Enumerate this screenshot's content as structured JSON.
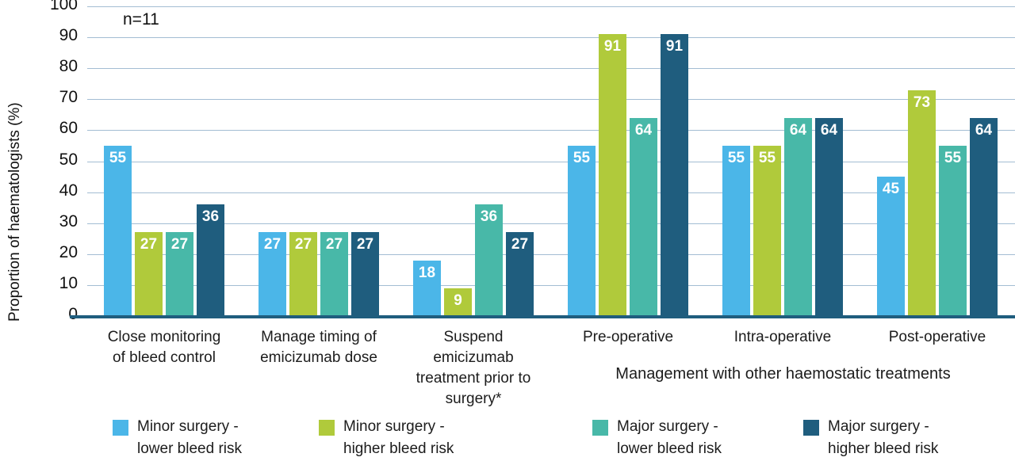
{
  "chart_data": {
    "type": "bar",
    "title": "",
    "ylabel": "Proportion of haematologists (%)",
    "annotation": "n=11",
    "ylim": [
      0,
      100
    ],
    "yticks": [
      0,
      10,
      20,
      30,
      40,
      50,
      60,
      70,
      80,
      90,
      100
    ],
    "grid": true,
    "gridline_color": "#a3bdd3",
    "axis_line_color": "#1f5d7e",
    "data_label_color": "#ffffff",
    "legend_position": "bottom",
    "categories": [
      "Close monitoring of bleed control",
      "Manage timing of emicizumab dose",
      "Suspend emicizumab treatment prior to surgery*",
      "Pre-operative",
      "Intra-operative",
      "Post-operative"
    ],
    "group_axis_label": "Management with other haemostatic treatments",
    "series": [
      {
        "name": "Minor surgery - lower bleed risk",
        "color": "#4bb6e8",
        "values": [
          55,
          27,
          18,
          55,
          55,
          45
        ]
      },
      {
        "name": "Minor surgery - higher bleed risk",
        "color": "#b0ca3b",
        "values": [
          27,
          27,
          9,
          91,
          55,
          73
        ]
      },
      {
        "name": "Major surgery - lower bleed risk",
        "color": "#48b8a8",
        "values": [
          27,
          27,
          36,
          64,
          64,
          55
        ]
      },
      {
        "name": "Major surgery - higher bleed risk",
        "color": "#1f5d7e",
        "values": [
          36,
          27,
          27,
          91,
          64,
          64
        ]
      }
    ]
  }
}
